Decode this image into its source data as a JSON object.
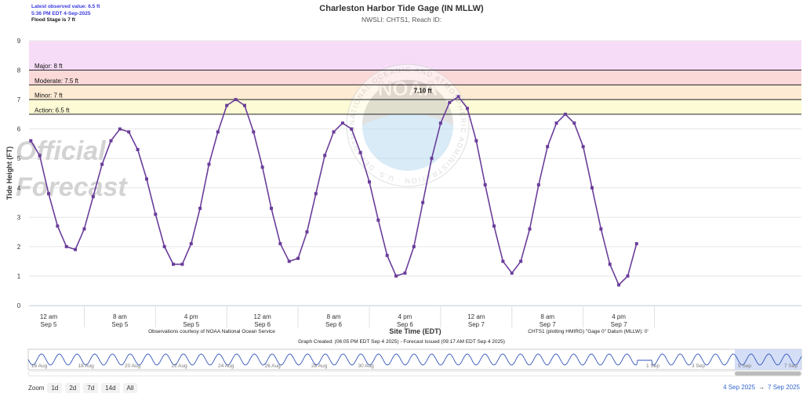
{
  "header": {
    "latest_observed": "Latest observed value: 6.5 ft",
    "latest_time": "5:36 PM EDT 4-Sep-2025",
    "flood_stage": "Flood Stage is 7 ft",
    "title": "Charleston Harbor Tide Gage (IN MLLW)",
    "subtitle": "NWSLI: CHTS1, Reach ID:"
  },
  "watermark": {
    "forecast_line1": "Official",
    "forecast_line2": "Forecast",
    "seal_text": "NATIONAL OCEANIC AND ATMOSPHERIC ADMINISTRATION · U.S. DEPARTMENT OF COMMERCE",
    "seal_center": "NOAA"
  },
  "credits": {
    "left": "Observations courtesy of NOAA National Ocean Service",
    "right": "CHTS1 (plotting HMIRG) \"Gage 0\" Datum (MLLW): 0'",
    "graph_created": "Graph Created: (06:05 PM EDT Sep 4 2025) - Forecast Issued (09:17 AM EDT Sep 4 2025)"
  },
  "controls": {
    "zoom_label": "Zoom",
    "zoom_buttons": [
      "1d",
      "2d",
      "7d",
      "14d",
      "All"
    ],
    "range_from": "4 Sep 2025",
    "range_arrow": "→",
    "range_to": "7 Sep 2025"
  },
  "navigator": {
    "labels": [
      "16 Aug",
      "18 Aug",
      "20 Aug",
      "22 Aug",
      "24 Aug",
      "26 Aug",
      "28 Aug",
      "30 Aug",
      "1 Sep",
      "3 Sep",
      "5 Sep",
      "7 Sep"
    ]
  },
  "colors": {
    "series": "#6a3d9a",
    "major_band": "#f7dcf7",
    "moderate_band": "#fbd9d9",
    "minor_band": "#fdebd3",
    "action_band": "#fdfbd5",
    "navigator_selection": "#c9d6f5"
  },
  "chart_data": {
    "type": "line",
    "title": "Charleston Harbor Tide Gage (IN MLLW)",
    "xlabel": "Site Time (EDT)",
    "ylabel": "Tide Height (FT)",
    "ylim": [
      0,
      9
    ],
    "yticks": [
      0,
      1,
      2,
      3,
      4,
      5,
      6,
      7,
      8,
      9
    ],
    "xlim_hours": [
      -2.2,
      84.5
    ],
    "x_ticks": [
      {
        "t": 0,
        "time": "12 am",
        "date": "Sep 5"
      },
      {
        "t": 8,
        "time": "8 am",
        "date": "Sep 5"
      },
      {
        "t": 16,
        "time": "4 pm",
        "date": "Sep 5"
      },
      {
        "t": 24,
        "time": "12 am",
        "date": "Sep 6"
      },
      {
        "t": 32,
        "time": "8 am",
        "date": "Sep 6"
      },
      {
        "t": 40,
        "time": "4 pm",
        "date": "Sep 6"
      },
      {
        "t": 48,
        "time": "12 am",
        "date": "Sep 7"
      },
      {
        "t": 56,
        "time": "8 am",
        "date": "Sep 7"
      },
      {
        "t": 64,
        "time": "4 pm",
        "date": "Sep 7"
      }
    ],
    "thresholds": [
      {
        "label": "Major: 8 ft",
        "value": 8
      },
      {
        "label": "Moderate: 7.5 ft",
        "value": 7.5
      },
      {
        "label": "Minor: 7 ft",
        "value": 7
      },
      {
        "label": "Action: 6.5 ft",
        "value": 6.5
      }
    ],
    "grid": true,
    "peak_annotation": {
      "label": "7.10 ft",
      "x": 42,
      "y": 7.1
    },
    "series": [
      {
        "x": [
          -2,
          -1,
          0,
          1,
          2,
          3,
          4,
          5,
          6,
          7,
          8,
          9,
          10,
          11,
          12,
          13,
          14,
          15,
          16,
          17,
          18,
          19,
          20,
          21,
          22,
          23,
          24,
          25,
          26,
          27,
          28,
          29,
          30,
          31,
          32,
          33,
          34,
          35,
          36,
          37,
          38,
          39,
          40,
          41,
          42,
          43,
          44,
          45,
          46,
          47,
          48,
          49,
          50,
          51,
          52,
          53,
          54,
          55,
          56,
          57,
          58,
          59,
          60,
          61,
          62,
          63,
          64,
          65,
          66
        ],
        "y": [
          5.6,
          5.1,
          3.8,
          2.7,
          2.0,
          1.9,
          2.6,
          3.7,
          4.8,
          5.6,
          6.0,
          5.9,
          5.3,
          4.3,
          3.1,
          2.0,
          1.4,
          1.4,
          2.1,
          3.3,
          4.8,
          5.9,
          6.8,
          7.0,
          6.8,
          5.9,
          4.7,
          3.3,
          2.1,
          1.5,
          1.6,
          2.5,
          3.8,
          5.1,
          5.9,
          6.2,
          6.0,
          5.2,
          4.2,
          2.9,
          1.7,
          1.0,
          1.1,
          2.0,
          3.5,
          5.0,
          6.2,
          6.9,
          7.1,
          6.7,
          5.6,
          4.1,
          2.7,
          1.5,
          1.1,
          1.5,
          2.6,
          4.1,
          5.4,
          6.2,
          6.5,
          6.2,
          5.4,
          4.0,
          2.6,
          1.4,
          0.7,
          1.0,
          2.1
        ]
      }
    ]
  }
}
